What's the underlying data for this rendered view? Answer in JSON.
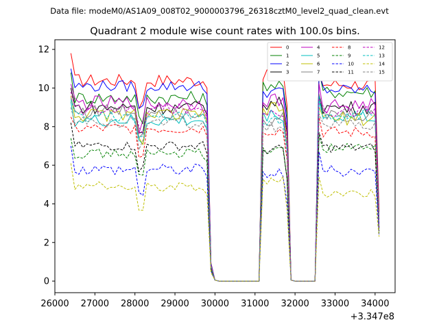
{
  "suptitle": "Data file: modeM0/AS1A09_008T02_9000003796_26318cztM0_level2_quad_clean.evt",
  "chart_data": {
    "type": "line",
    "title": "Quadrant 2 module wise count rates with 100.0s bins.",
    "xlabel": "",
    "ylabel": "",
    "x_offset_label": "+3.347e8",
    "xlim": [
      26000,
      34500
    ],
    "ylim": [
      -0.6,
      12.5
    ],
    "xticks": [
      26000,
      27000,
      28000,
      29000,
      30000,
      31000,
      32000,
      33000,
      34000
    ],
    "xtick_labels": [
      "26000",
      "27000",
      "28000",
      "29000",
      "30000",
      "31000",
      "32000",
      "33000",
      "34000"
    ],
    "yticks": [
      0,
      2,
      4,
      6,
      8,
      10,
      12
    ],
    "ytick_labels": [
      "0",
      "2",
      "4",
      "6",
      "8",
      "10",
      "12"
    ],
    "legend_position": "top-right",
    "legend_columns": 4,
    "x": [
      26400,
      26500,
      26600,
      26700,
      26800,
      26900,
      27000,
      27100,
      27200,
      27300,
      27400,
      27500,
      27600,
      27700,
      27800,
      27900,
      28000,
      28100,
      28200,
      28300,
      28400,
      28500,
      28600,
      28700,
      28800,
      28900,
      29000,
      29100,
      29200,
      29300,
      29400,
      29500,
      29600,
      29700,
      29800,
      29900,
      30000,
      30100,
      30200,
      30300,
      30400,
      30500,
      30600,
      30700,
      30800,
      30900,
      31000,
      31100,
      31200,
      31300,
      31400,
      31500,
      31600,
      31700,
      31800,
      31900,
      32000,
      32100,
      32200,
      32300,
      32400,
      32500,
      32600,
      32700,
      32800,
      32900,
      33000,
      33100,
      33200,
      33300,
      33400,
      33500,
      33600,
      33700,
      33800,
      33900,
      34000,
      34100
    ],
    "series": [
      {
        "name": "0",
        "color": "#ff0000",
        "dash": "solid",
        "level_a": 10.4,
        "level_b": 10.6,
        "level_c": 10.2,
        "start": 11.8,
        "jitter": 0.35,
        "end": 3.6
      },
      {
        "name": "1",
        "color": "#008000",
        "dash": "solid",
        "level_a": 9.5,
        "level_b": 10.2,
        "level_c": 9.8,
        "start": 10.8,
        "jitter": 0.35,
        "end": 3.2
      },
      {
        "name": "2",
        "color": "#0000ff",
        "dash": "solid",
        "level_a": 10.1,
        "level_b": 9.8,
        "level_c": 9.9,
        "start": 11.0,
        "jitter": 0.3,
        "end": 3.0
      },
      {
        "name": "3",
        "color": "#000000",
        "dash": "solid",
        "level_a": 9.0,
        "level_b": 9.2,
        "level_c": 9.0,
        "start": 10.0,
        "jitter": 0.35,
        "end": 2.8
      },
      {
        "name": "4",
        "color": "#bf00bf",
        "dash": "solid",
        "level_a": 9.2,
        "level_b": 9.4,
        "level_c": 9.1,
        "start": 10.2,
        "jitter": 0.4,
        "end": 3.0
      },
      {
        "name": "5",
        "color": "#00bfbf",
        "dash": "solid",
        "level_a": 8.3,
        "level_b": 8.6,
        "level_c": 8.5,
        "start": 9.3,
        "jitter": 0.35,
        "end": 2.9
      },
      {
        "name": "6",
        "color": "#bfbf00",
        "dash": "solid",
        "level_a": 8.6,
        "level_b": 8.9,
        "level_c": 8.4,
        "start": 9.6,
        "jitter": 0.35,
        "end": 2.7
      },
      {
        "name": "7",
        "color": "#808080",
        "dash": "solid",
        "level_a": 8.8,
        "level_b": 8.4,
        "level_c": 8.6,
        "start": 9.5,
        "jitter": 0.4,
        "end": 2.8
      },
      {
        "name": "8",
        "color": "#ff0000",
        "dash": "dashed",
        "level_a": 7.9,
        "level_b": 7.8,
        "level_c": 7.7,
        "start": 8.5,
        "jitter": 0.3,
        "end": 2.6
      },
      {
        "name": "9",
        "color": "#008000",
        "dash": "dashed",
        "level_a": 6.6,
        "level_b": 6.8,
        "level_c": 6.9,
        "start": 7.4,
        "jitter": 0.25,
        "end": 2.5
      },
      {
        "name": "10",
        "color": "#0000ff",
        "dash": "dashed",
        "level_a": 5.8,
        "level_b": 5.6,
        "level_c": 5.7,
        "start": 7.0,
        "jitter": 0.3,
        "end": 2.4
      },
      {
        "name": "11",
        "color": "#000000",
        "dash": "dashed",
        "level_a": 7.0,
        "level_b": 6.8,
        "level_c": 6.9,
        "start": 8.2,
        "jitter": 0.25,
        "end": 2.6
      },
      {
        "name": "12",
        "color": "#bf00bf",
        "dash": "dashed",
        "level_a": 8.9,
        "level_b": 8.8,
        "level_c": 8.8,
        "start": 9.8,
        "jitter": 0.3,
        "end": 2.8
      },
      {
        "name": "13",
        "color": "#00bfbf",
        "dash": "dashed",
        "level_a": 8.5,
        "level_b": 8.3,
        "level_c": 8.6,
        "start": 9.4,
        "jitter": 0.3,
        "end": 2.7
      },
      {
        "name": "14",
        "color": "#bfbf00",
        "dash": "dashed",
        "level_a": 4.9,
        "level_b": 5.2,
        "level_c": 4.6,
        "start": 6.1,
        "jitter": 0.25,
        "end": 2.3
      },
      {
        "name": "15",
        "color": "#808080",
        "dash": "dashed",
        "level_a": 8.2,
        "level_b": 8.0,
        "level_c": 8.1,
        "start": 9.0,
        "jitter": 0.3,
        "end": 2.6
      }
    ]
  }
}
